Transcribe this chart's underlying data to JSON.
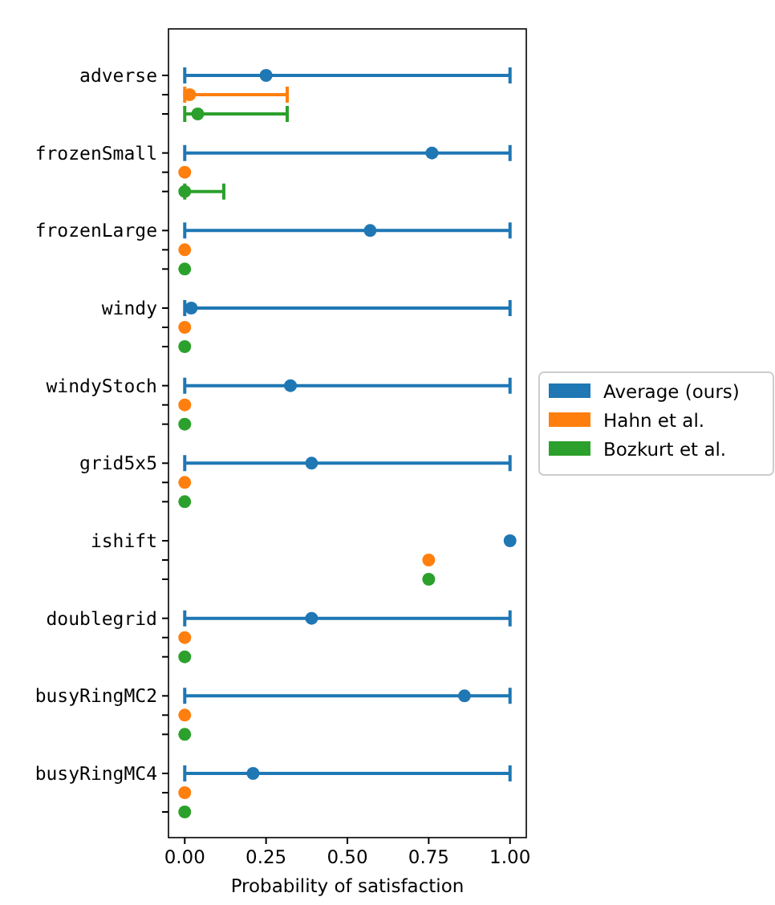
{
  "chart_data": {
    "type": "scatter",
    "orientation": "horizontal",
    "xlabel": "Probability of satisfaction",
    "categories": [
      "adverse",
      "frozenSmall",
      "frozenLarge",
      "windy",
      "windyStoch",
      "grid5x5",
      "ishift",
      "doublegrid",
      "busyRingMC2",
      "busyRingMC4"
    ],
    "xlim": [
      -0.05,
      1.05
    ],
    "xticks": [
      {
        "value": 0,
        "label": "0.00"
      },
      {
        "value": 0.25,
        "label": "0.25"
      },
      {
        "value": 0.5,
        "label": "0.50"
      },
      {
        "value": 0.75,
        "label": "0.75"
      },
      {
        "value": 1,
        "label": "1.00"
      }
    ],
    "marker": "circle",
    "legend": "right",
    "series": [
      {
        "name": "Average (ours)",
        "color": "#1f77b4",
        "values": [
          0.25,
          0.76,
          0.57,
          0.02,
          0.325,
          0.39,
          1,
          0.39,
          0.86,
          0.21
        ],
        "errors": [
          [
            0,
            1
          ],
          [
            0,
            1
          ],
          [
            0,
            1
          ],
          [
            0,
            1
          ],
          [
            0,
            1
          ],
          [
            0,
            1
          ],
          null,
          [
            0,
            1
          ],
          [
            0,
            1
          ],
          [
            0,
            1
          ]
        ]
      },
      {
        "name": "Hahn et al.",
        "color": "#ff7f0e",
        "values": [
          0.015,
          0,
          0,
          0,
          0,
          0,
          0.75,
          0,
          0,
          0
        ],
        "errors": [
          [
            0,
            0.315
          ],
          null,
          null,
          null,
          null,
          null,
          null,
          null,
          null,
          null
        ]
      },
      {
        "name": "Bozkurt et al.",
        "color": "#2ca02c",
        "values": [
          0.04,
          0,
          0,
          0,
          0,
          0,
          0.75,
          0,
          0,
          0
        ],
        "errors": [
          [
            0,
            0.315
          ],
          [
            0,
            0.12
          ],
          null,
          null,
          null,
          null,
          null,
          null,
          null,
          null
        ]
      }
    ]
  }
}
